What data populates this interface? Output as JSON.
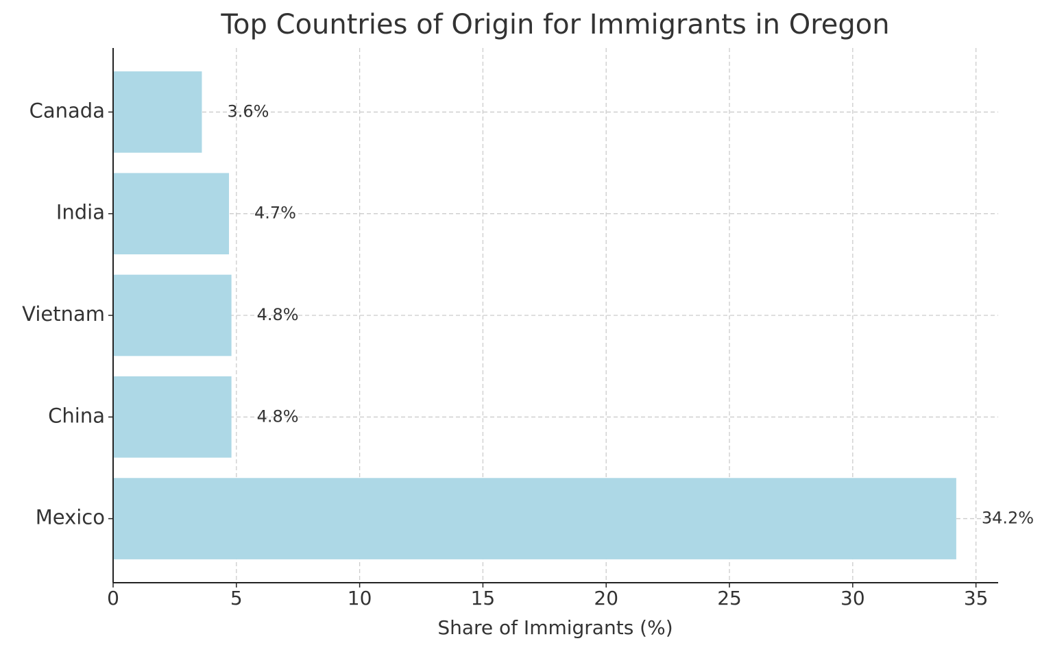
{
  "chart_data": {
    "type": "barh",
    "title": "Top Countries of Origin for Immigrants in Oregon",
    "x_label": "Share of Immigrants (%)",
    "categories": [
      "Mexico",
      "China",
      "Vietnam",
      "India",
      "Canada"
    ],
    "values": [
      34.2,
      4.8,
      4.8,
      4.7,
      3.6
    ],
    "value_labels": [
      "34.2%",
      "4.8%",
      "4.8%",
      "4.7%",
      "3.6%"
    ],
    "color": "#add8e6",
    "xlim": [
      0,
      35.9
    ],
    "xticks": [
      0,
      5,
      10,
      15,
      20,
      25,
      30,
      35
    ],
    "grid": true
  }
}
